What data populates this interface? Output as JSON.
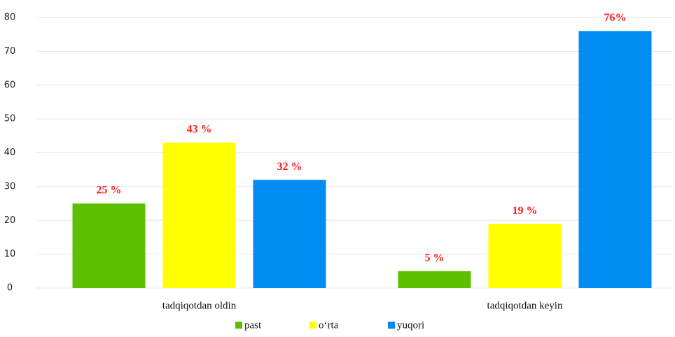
{
  "chart_data": {
    "type": "bar",
    "categories": [
      "tadqiqotdan oldin",
      "tadqiqotdan keyin"
    ],
    "series": [
      {
        "name": "past",
        "color": "#5cc000",
        "values": [
          25,
          5
        ],
        "value_labels": [
          "25 %",
          "5 %"
        ]
      },
      {
        "name": "o‘rta",
        "color": "#ffff00",
        "values": [
          43,
          19
        ],
        "value_labels": [
          "43 %",
          "19 %"
        ]
      },
      {
        "name": "yuqori",
        "color": "#008cf0",
        "values": [
          32,
          76
        ],
        "value_labels": [
          "32 %",
          "76%"
        ]
      }
    ],
    "ylim": [
      0,
      80
    ],
    "yticks": [
      0,
      10,
      20,
      30,
      40,
      50,
      60,
      70,
      80
    ],
    "grid": true,
    "legend": "bottom"
  }
}
